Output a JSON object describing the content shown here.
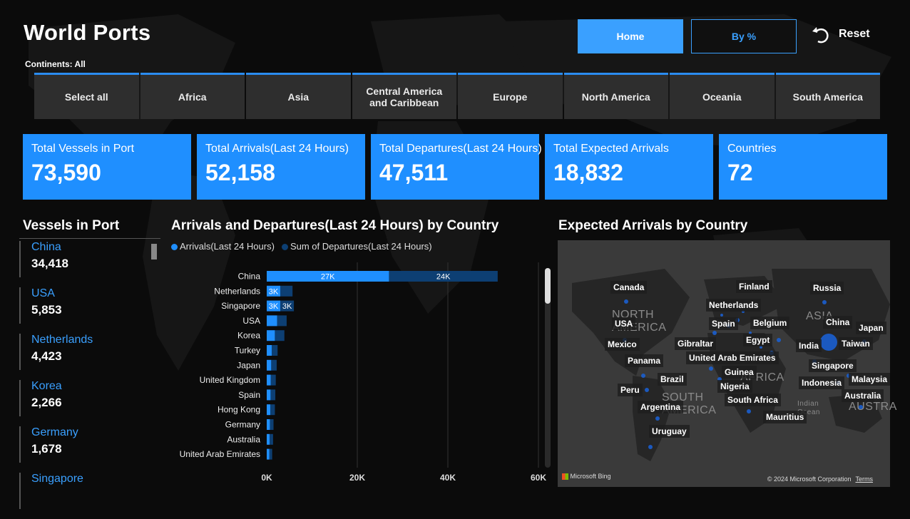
{
  "header": {
    "title": "World Ports",
    "home_label": "Home",
    "bypct_label": "By %",
    "reset_label": "Reset"
  },
  "continents": {
    "label": "Continents: All",
    "items": [
      "Select all",
      "Africa",
      "Asia",
      "Central America\nand Caribbean",
      "Europe",
      "North America",
      "Oceania",
      "South America"
    ]
  },
  "kpis": [
    {
      "label": "Total Vessels in Port",
      "value": "73,590"
    },
    {
      "label": "Total Arrivals(Last 24 Hours)",
      "value": "52,158"
    },
    {
      "label": "Total Departures(Last 24 Hours)",
      "value": "47,511"
    },
    {
      "label": "Total Expected Arrivals",
      "value": "18,832"
    },
    {
      "label": "Countries",
      "value": "72"
    }
  ],
  "vessels": {
    "title": "Vessels in Port",
    "items": [
      {
        "name": "China",
        "value": "34,418"
      },
      {
        "name": "USA",
        "value": "5,853"
      },
      {
        "name": "Netherlands",
        "value": "4,423"
      },
      {
        "name": "Korea",
        "value": "2,266"
      },
      {
        "name": "Germany",
        "value": "1,678"
      },
      {
        "name": "Singapore",
        "value": ""
      }
    ]
  },
  "arrivals_chart": {
    "title": "Arrivals and Departures(Last 24 Hours) by Country",
    "legend": [
      "Arrivals(Last 24 Hours)",
      "Sum of Departures(Last 24 Hours)"
    ]
  },
  "chart_data": {
    "type": "bar",
    "orientation": "horizontal",
    "stacked": true,
    "categories": [
      "China",
      "Netherlands",
      "Singapore",
      "USA",
      "Korea",
      "Turkey",
      "Japan",
      "United Kingdom",
      "Spain",
      "Hong Kong",
      "Germany",
      "Australia",
      "United Arab Emirates"
    ],
    "series": [
      {
        "name": "Arrivals(Last 24 Hours)",
        "color": "#1f8fff",
        "values": [
          27000,
          3000,
          3000,
          2300,
          1800,
          1100,
          1000,
          900,
          850,
          800,
          700,
          650,
          600
        ],
        "labels": [
          "27K",
          "3K",
          "3K",
          "",
          "",
          "",
          "",
          "",
          "",
          "",
          "",
          "",
          ""
        ]
      },
      {
        "name": "Sum of Departures(Last 24 Hours)",
        "color": "#0d3f73",
        "values": [
          24000,
          2700,
          3000,
          2100,
          2100,
          1300,
          1200,
          1100,
          1050,
          1000,
          800,
          750,
          600
        ],
        "labels": [
          "24K",
          "",
          "3K",
          "",
          "",
          "",
          "",
          "",
          "",
          "",
          "",
          "",
          ""
        ]
      }
    ],
    "xlim": [
      0,
      60000
    ],
    "xticks": [
      "0K",
      "20K",
      "40K",
      "60K"
    ],
    "xtick_values": [
      0,
      20000,
      40000,
      60000
    ],
    "grid": true
  },
  "map": {
    "title": "Expected Arrivals by Country",
    "labels": [
      "Canada",
      "Finland",
      "Russia",
      "Netherlands",
      "USA",
      "Spain",
      "Belgium",
      "China",
      "Japan",
      "Mexico",
      "Gibraltar",
      "Egypt",
      "India",
      "Taiwan",
      "United Arab Emirates",
      "Panama",
      "Guinea",
      "Singapore",
      "Brazil",
      "Malaysia",
      "Nigeria",
      "Indonesia",
      "Peru",
      "South Africa",
      "Australia",
      "Argentina",
      "Mauritius",
      "Uruguay"
    ],
    "regions": [
      "NORTH\nAMERICA",
      "ASIA",
      "AFRICA",
      "SOUTH\nAMERICA",
      "AUSTRA",
      "Indian\nOcean"
    ],
    "bing": "Microsoft Bing",
    "copyright": "© 2024 Microsoft Corporation",
    "terms": "Terms"
  }
}
